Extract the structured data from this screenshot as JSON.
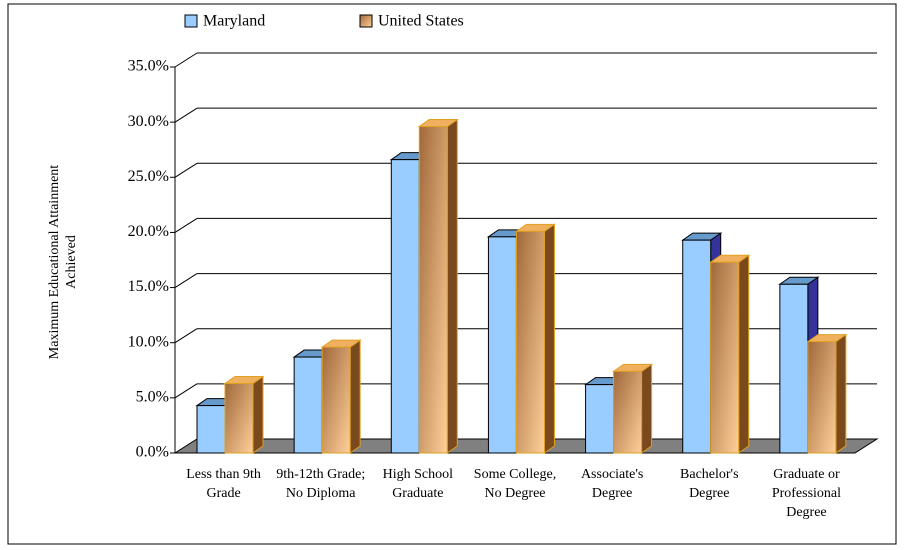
{
  "chart_data": {
    "type": "bar3d",
    "y_label": "Maximum Educational Attainment Achieved",
    "categories": [
      "Less than 9th Grade",
      "9th-12th Grade; No Diploma",
      "High School Graduate",
      "Some College, No Degree",
      "Associate's Degree",
      "Bachelor's Degree",
      "Graduate or Professional Degree"
    ],
    "series": [
      {
        "name": "Maryland",
        "color": "#99ccff",
        "values": [
          4.3,
          8.7,
          26.6,
          19.6,
          6.2,
          19.3,
          15.3
        ]
      },
      {
        "name": "United States",
        "color": "#d9955a",
        "values": [
          6.3,
          9.6,
          29.6,
          20.1,
          7.4,
          17.3,
          10.1
        ]
      }
    ],
    "ylim": [
      0,
      35
    ],
    "yticks": [
      {
        "value": 0,
        "label": "0.0%"
      },
      {
        "value": 5,
        "label": "5.0%"
      },
      {
        "value": 10,
        "label": "10.0%"
      },
      {
        "value": 15,
        "label": "15.0%"
      },
      {
        "value": 20,
        "label": "20.0%"
      },
      {
        "value": 25,
        "label": "25.0%"
      },
      {
        "value": 30,
        "label": "30.0%"
      },
      {
        "value": 35,
        "label": "35.0%"
      }
    ],
    "grid": true
  }
}
